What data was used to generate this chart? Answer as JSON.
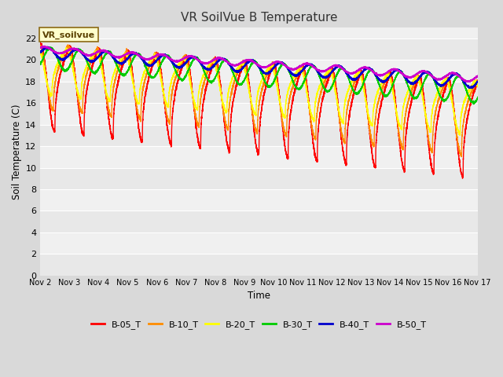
{
  "title": "VR SoilVue B Temperature",
  "xlabel": "Time",
  "ylabel": "Soil Temperature (C)",
  "ylim": [
    0,
    23
  ],
  "yticks": [
    0,
    2,
    4,
    6,
    8,
    10,
    12,
    14,
    16,
    18,
    20,
    22
  ],
  "num_days": 15,
  "annotation_text": "VR_soilvue",
  "legend_labels": [
    "B-05_T",
    "B-10_T",
    "B-20_T",
    "B-30_T",
    "B-40_T",
    "B-50_T"
  ],
  "line_colors": [
    "#ff0000",
    "#ff8c00",
    "#ffff00",
    "#00cc00",
    "#0000cc",
    "#cc00cc"
  ],
  "background_color": "#d9d9d9",
  "plot_bg_light": "#f0f0f0",
  "plot_bg_dark": "#e0e0e0",
  "grid_color": "#ffffff"
}
